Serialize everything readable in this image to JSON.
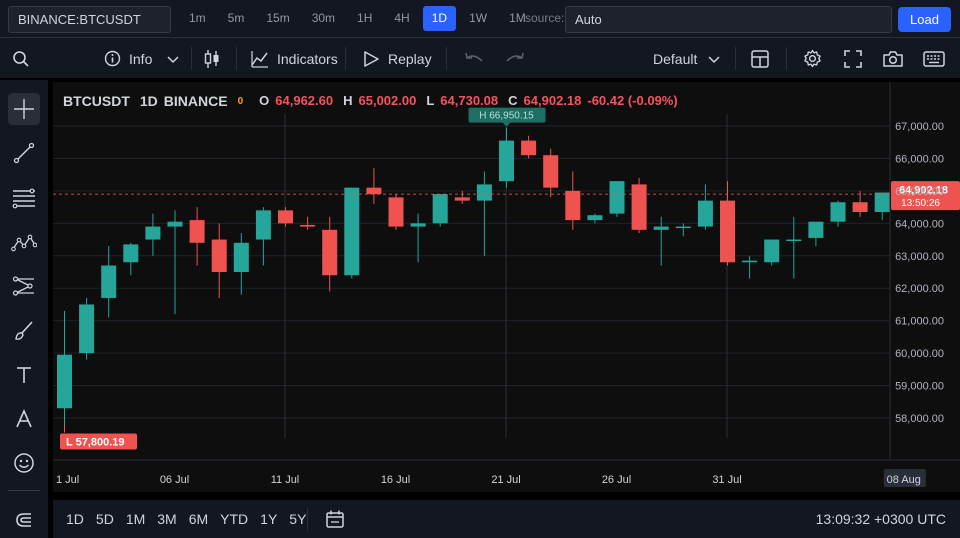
{
  "topbar": {
    "symbol_value": "BINANCE:BTCUSDT",
    "intervals": [
      "1m",
      "5m",
      "15m",
      "30m",
      "1H",
      "4H",
      "1D",
      "1W",
      "1M"
    ],
    "active_interval": "1D",
    "source_label": "source:",
    "source_value": "Auto",
    "load_label": "Load"
  },
  "toolbar": {
    "info_label": "Info",
    "indicators_label": "Indicators",
    "replay_label": "Replay",
    "layout_label": "Default"
  },
  "legend": {
    "symbol": "BTCUSDT",
    "interval": "1D",
    "exchange": "BINANCE",
    "dot": "0",
    "open_label": "O",
    "open": "64,962.60",
    "high_label": "H",
    "high": "65,002.00",
    "low_label": "L",
    "low": "64,730.08",
    "close_label": "C",
    "close": "64,902.18",
    "change": "-60.42 (-0.09%)"
  },
  "bottombar": {
    "ranges": [
      "1D",
      "5D",
      "1M",
      "3M",
      "6M",
      "YTD",
      "1Y",
      "5Y"
    ],
    "clock": "13:09:32 +0300 UTC"
  },
  "colors": {
    "up": "#26a69a",
    "down": "#ef5350",
    "accent": "#2962ff"
  },
  "chart_data": {
    "type": "candlestick",
    "title": "",
    "ylim": [
      57400,
      67500
    ],
    "y_ticks": [
      58000,
      59000,
      60000,
      61000,
      62000,
      63000,
      64000,
      65000,
      66000,
      67000
    ],
    "y_tick_labels": [
      "58,000.00",
      "59,000.00",
      "60,000.00",
      "61,000.00",
      "62,000.00",
      "63,000.00",
      "64,000.00",
      "65,000.00",
      "66,000.00",
      "67,000.00"
    ],
    "x_tick_labels": [
      {
        "day": 0,
        "label": "1 Jul"
      },
      {
        "day": 5,
        "label": "06 Jul"
      },
      {
        "day": 10,
        "label": "11 Jul"
      },
      {
        "day": 15,
        "label": "16 Jul"
      },
      {
        "day": 20,
        "label": "21 Jul"
      },
      {
        "day": 25,
        "label": "26 Jul"
      },
      {
        "day": 30,
        "label": "31 Jul"
      },
      {
        "day": 38,
        "label": "08 Aug"
      }
    ],
    "candles": [
      {
        "date": "2024-07-01",
        "o": 58300,
        "h": 61300,
        "l": 57800,
        "c": 59950
      },
      {
        "date": "2024-07-02",
        "o": 60000,
        "h": 61700,
        "l": 59800,
        "c": 61500
      },
      {
        "date": "2024-07-03",
        "o": 61700,
        "h": 63300,
        "l": 61100,
        "c": 62700
      },
      {
        "date": "2024-07-04",
        "o": 62800,
        "h": 63400,
        "l": 62400,
        "c": 63350
      },
      {
        "date": "2024-07-05",
        "o": 63500,
        "h": 64300,
        "l": 63000,
        "c": 63900
      },
      {
        "date": "2024-07-06",
        "o": 63900,
        "h": 64400,
        "l": 61200,
        "c": 64050
      },
      {
        "date": "2024-07-07",
        "o": 64100,
        "h": 64500,
        "l": 62700,
        "c": 63400
      },
      {
        "date": "2024-07-08",
        "o": 63500,
        "h": 64000,
        "l": 61700,
        "c": 62500
      },
      {
        "date": "2024-07-09",
        "o": 62500,
        "h": 63700,
        "l": 61800,
        "c": 63400
      },
      {
        "date": "2024-07-10",
        "o": 63500,
        "h": 64500,
        "l": 62700,
        "c": 64400
      },
      {
        "date": "2024-07-11",
        "o": 64400,
        "h": 64500,
        "l": 63900,
        "c": 64000
      },
      {
        "date": "2024-07-12",
        "o": 63950,
        "h": 64200,
        "l": 63800,
        "c": 63900
      },
      {
        "date": "2024-07-13",
        "o": 63800,
        "h": 64200,
        "l": 61900,
        "c": 62400
      },
      {
        "date": "2024-07-14",
        "o": 62400,
        "h": 65100,
        "l": 62300,
        "c": 65100
      },
      {
        "date": "2024-07-15",
        "o": 65100,
        "h": 65700,
        "l": 64600,
        "c": 64900
      },
      {
        "date": "2024-07-16",
        "o": 64800,
        "h": 64900,
        "l": 63800,
        "c": 63900
      },
      {
        "date": "2024-07-17",
        "o": 63900,
        "h": 64300,
        "l": 62800,
        "c": 64000
      },
      {
        "date": "2024-07-18",
        "o": 64000,
        "h": 64900,
        "l": 63900,
        "c": 64900
      },
      {
        "date": "2024-07-19",
        "o": 64800,
        "h": 65000,
        "l": 64600,
        "c": 64700
      },
      {
        "date": "2024-07-20",
        "o": 64700,
        "h": 65600,
        "l": 63000,
        "c": 65200
      },
      {
        "date": "2024-07-21",
        "o": 65300,
        "h": 66950,
        "l": 65100,
        "c": 66550
      },
      {
        "date": "2024-07-22",
        "o": 66550,
        "h": 66700,
        "l": 66000,
        "c": 66100
      },
      {
        "date": "2024-07-23",
        "o": 66100,
        "h": 66300,
        "l": 64800,
        "c": 65100
      },
      {
        "date": "2024-07-24",
        "o": 65000,
        "h": 65600,
        "l": 63800,
        "c": 64100
      },
      {
        "date": "2024-07-25",
        "o": 64100,
        "h": 64300,
        "l": 64000,
        "c": 64250
      },
      {
        "date": "2024-07-26",
        "o": 64300,
        "h": 65300,
        "l": 64200,
        "c": 65300
      },
      {
        "date": "2024-07-27",
        "o": 65200,
        "h": 65400,
        "l": 63700,
        "c": 63800
      },
      {
        "date": "2024-07-28",
        "o": 63800,
        "h": 64200,
        "l": 62700,
        "c": 63900
      },
      {
        "date": "2024-07-29",
        "o": 63900,
        "h": 64000,
        "l": 63600,
        "c": 63900
      },
      {
        "date": "2024-07-30",
        "o": 63900,
        "h": 65200,
        "l": 63800,
        "c": 64700
      },
      {
        "date": "2024-07-31",
        "o": 64700,
        "h": 65300,
        "l": 62700,
        "c": 62800
      },
      {
        "date": "2024-08-01",
        "o": 62800,
        "h": 63000,
        "l": 62300,
        "c": 62850
      },
      {
        "date": "2024-08-02",
        "o": 62800,
        "h": 63500,
        "l": 62700,
        "c": 63500
      },
      {
        "date": "2024-08-03",
        "o": 63500,
        "h": 64200,
        "l": 62300,
        "c": 63500
      },
      {
        "date": "2024-08-04",
        "o": 63550,
        "h": 64000,
        "l": 63300,
        "c": 64050
      },
      {
        "date": "2024-08-05",
        "o": 64050,
        "h": 64700,
        "l": 63900,
        "c": 64650
      },
      {
        "date": "2024-08-06",
        "o": 64650,
        "h": 65000,
        "l": 64200,
        "c": 64350
      },
      {
        "date": "2024-08-07",
        "o": 64350,
        "h": 64950,
        "l": 64100,
        "c": 64950
      },
      {
        "date": "2024-08-08",
        "o": 64962.6,
        "h": 65002.0,
        "l": 64730.08,
        "c": 64902.18
      }
    ],
    "last_price_label": "64,902.18",
    "countdown_label": "13:50:26",
    "high_marker": {
      "day": 20,
      "label": "H 66,950.15"
    },
    "low_marker": {
      "day": 0,
      "label": "L 57,800.19"
    },
    "grid": true
  }
}
